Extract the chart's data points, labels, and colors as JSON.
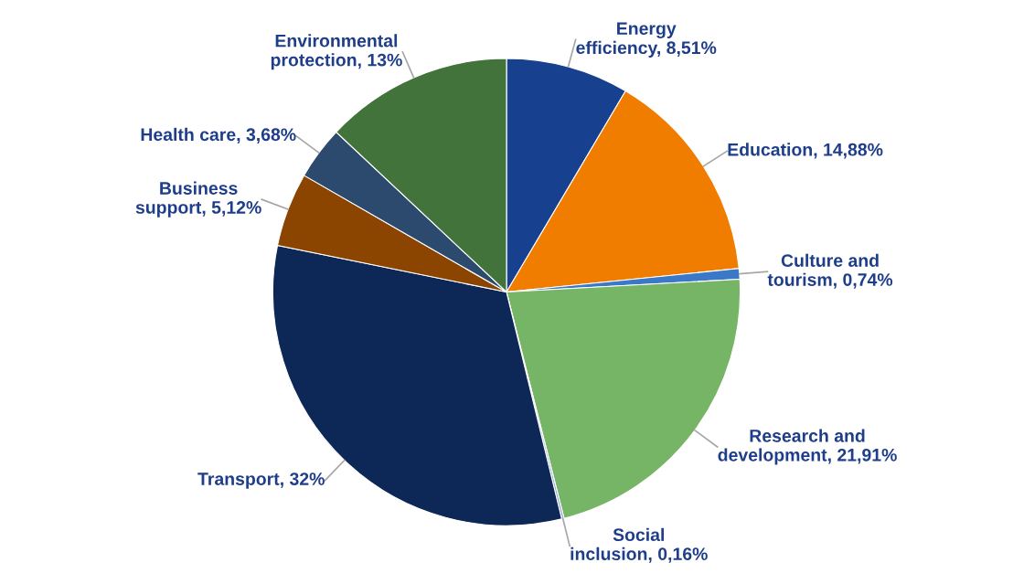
{
  "chart_data": {
    "type": "pie",
    "categories": [
      "Energy efficiency",
      "Education",
      "Culture and tourism",
      "Research and development",
      "Social inclusion",
      "Transport",
      "Business support",
      "Health care",
      "Environmental protection"
    ],
    "values": [
      8.51,
      14.88,
      0.74,
      21.91,
      0.16,
      32,
      5.12,
      3.68,
      13
    ],
    "value_labels": [
      "8,51%",
      "14,88%",
      "0,74%",
      "21,91%",
      "0,16%",
      "32%",
      "5,12%",
      "3,68%",
      "13%"
    ],
    "colors": [
      "#17408f",
      "#f07c00",
      "#3b78c8",
      "#77b566",
      "#8fa8d8",
      "#0d2857",
      "#8b4500",
      "#2b4a6e",
      "#41733a"
    ]
  }
}
